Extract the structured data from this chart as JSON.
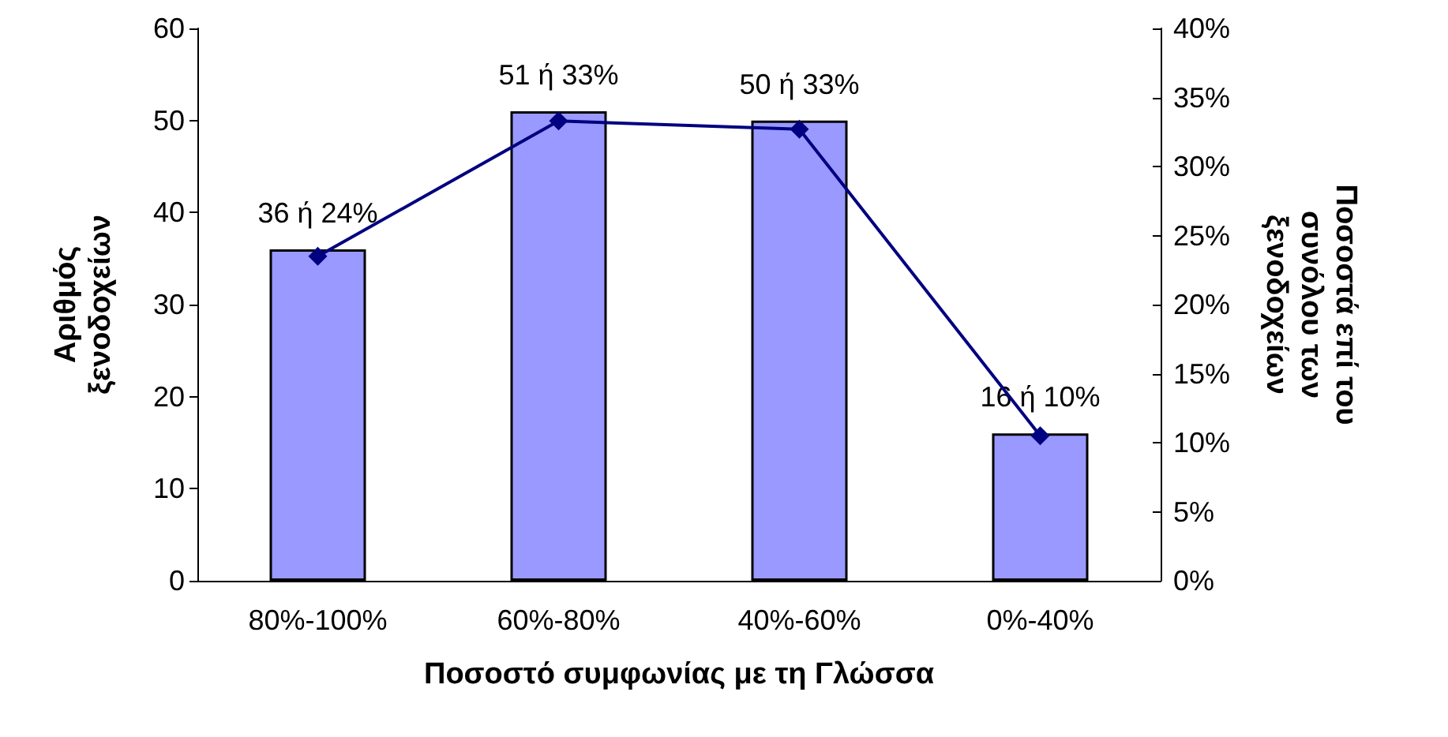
{
  "chart_data": {
    "type": "bar",
    "xlabel": "Ποσοστό συμφωνίας με τη Γλώσσα",
    "ylabel": "Αριθμός\nξενοδοχείων",
    "y2label": "Ποσοστά επί του\nσυνόλου των\nξενοδοχείων",
    "categories": [
      "80%-100%",
      "60%-80%",
      "40%-60%",
      "0%-40%"
    ],
    "series": [
      {
        "color": "#9999ff",
        "values": [
          36,
          51,
          50,
          16
        ],
        "value_labels": [
          "36 ή 24%",
          "51 ή 33%",
          "50 ή 33%",
          "16 ή 10%"
        ]
      },
      {
        "type": "line",
        "axis": "y2",
        "color": "#000080",
        "marker": "diamond",
        "values": [
          23.5,
          33.3,
          32.7,
          10.5
        ]
      }
    ],
    "ylim": [
      0,
      60
    ],
    "yticks": [
      0,
      10,
      20,
      30,
      40,
      50,
      60
    ],
    "y2lim": [
      0,
      40
    ],
    "y2ticks": [
      {
        "value": 0,
        "label": "0%"
      },
      {
        "value": 5,
        "label": "5%"
      },
      {
        "value": 10,
        "label": "10%"
      },
      {
        "value": 15,
        "label": "15%"
      },
      {
        "value": 20,
        "label": "20%"
      },
      {
        "value": 25,
        "label": "25%"
      },
      {
        "value": 30,
        "label": "30%"
      },
      {
        "value": 35,
        "label": "35%"
      },
      {
        "value": 40,
        "label": "40%"
      }
    ],
    "grid": false
  }
}
